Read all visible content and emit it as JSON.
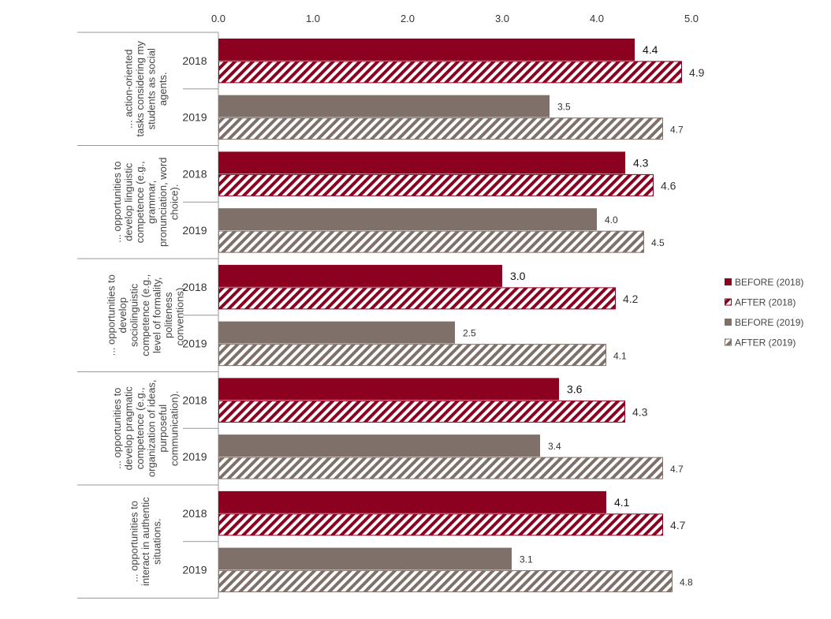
{
  "chart_data": {
    "type": "bar",
    "orientation": "horizontal",
    "xlim": [
      0,
      5
    ],
    "xticks": [
      "0.0",
      "1.0",
      "2.0",
      "3.0",
      "4.0",
      "5.0"
    ],
    "legend_position": "right",
    "colors": {
      "before_2018": "#8c0020",
      "after_2018": "#8c0020",
      "before_2019": "#7f716a",
      "after_2019": "#7f716a"
    },
    "legend": [
      {
        "key": "before_2018",
        "label": "BEFORE (2018)",
        "pattern": "solid"
      },
      {
        "key": "after_2018",
        "label": "AFTER (2018)",
        "pattern": "hatched"
      },
      {
        "key": "before_2019",
        "label": "BEFORE (2019)",
        "pattern": "solid"
      },
      {
        "key": "after_2019",
        "label": "AFTER (2019)",
        "pattern": "hatched"
      }
    ],
    "groups": [
      {
        "label_lines": [
          "... action-oriented",
          "tasks considering my",
          "students as social",
          "agents."
        ],
        "rows": [
          {
            "year": "2018",
            "before": 4.4,
            "before_label": "4.4",
            "after": 4.9,
            "after_label": "4.9"
          },
          {
            "year": "2019",
            "before": 3.5,
            "before_label": "3.5",
            "after": 4.7,
            "after_label": "4.7"
          }
        ]
      },
      {
        "label_lines": [
          "... opportunities to",
          "develop linguistic",
          "competence (e.g.,",
          "grammar,",
          "pronunciation, word",
          "choice)."
        ],
        "rows": [
          {
            "year": "2018",
            "before": 4.3,
            "before_label": "4.3",
            "after": 4.6,
            "after_label": "4.6"
          },
          {
            "year": "2019",
            "before": 4.0,
            "before_label": "4.0",
            "after": 4.5,
            "after_label": "4.5"
          }
        ]
      },
      {
        "label_lines": [
          "... opportunities to",
          "develop",
          "sociolinguistic",
          "competence (e.g.,",
          "level of formality,",
          "politeness",
          "conventions)."
        ],
        "rows": [
          {
            "year": "2018",
            "before": 3.0,
            "before_label": "3.0",
            "after": 4.2,
            "after_label": "4.2"
          },
          {
            "year": "2019",
            "before": 2.5,
            "before_label": "2.5",
            "after": 4.1,
            "after_label": "4.1"
          }
        ]
      },
      {
        "label_lines": [
          "... opportunities to",
          "develop pragmatic",
          "competence (e.g.,",
          "organization of ideas,",
          "purposeful",
          "communication)."
        ],
        "rows": [
          {
            "year": "2018",
            "before": 3.6,
            "before_label": "3.6",
            "after": 4.3,
            "after_label": "4.3"
          },
          {
            "year": "2019",
            "before": 3.4,
            "before_label": "3.4",
            "after": 4.7,
            "after_label": "4.7"
          }
        ]
      },
      {
        "label_lines": [
          "... opportunities to",
          "interact in authentic",
          "situations."
        ],
        "rows": [
          {
            "year": "2018",
            "before": 4.1,
            "before_label": "4.1",
            "after": 4.7,
            "after_label": "4.7"
          },
          {
            "year": "2019",
            "before": 3.1,
            "before_label": "3.1",
            "after": 4.8,
            "after_label": "4.8"
          }
        ]
      }
    ]
  }
}
